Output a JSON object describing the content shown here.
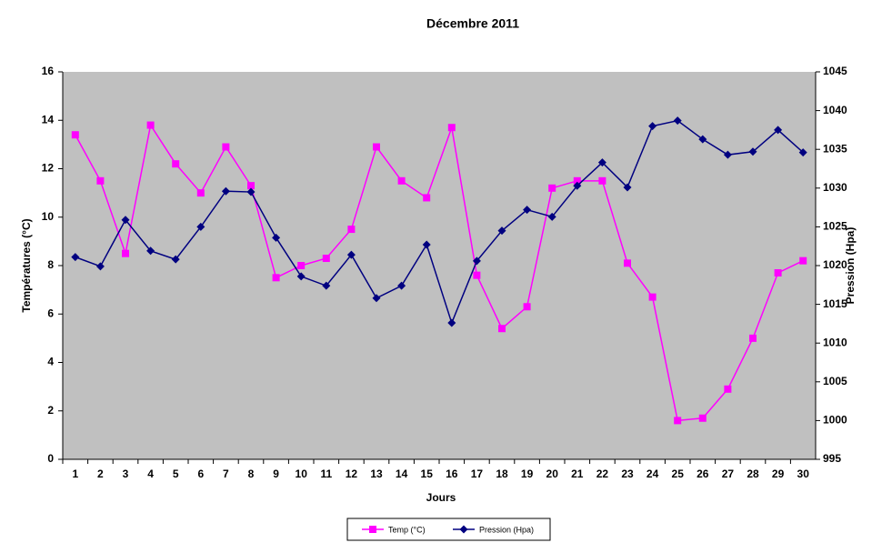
{
  "chart_data": {
    "type": "line",
    "title": "Décembre 2011",
    "x_label": "Jours",
    "y_label": "Températures (°C)",
    "y2_label": "Pression (Hpa)",
    "categories": [
      "1",
      "2",
      "3",
      "4",
      "5",
      "6",
      "7",
      "8",
      "9",
      "10",
      "11",
      "12",
      "13",
      "14",
      "15",
      "16",
      "17",
      "18",
      "19",
      "20",
      "21",
      "22",
      "23",
      "24",
      "25",
      "26",
      "27",
      "28",
      "29",
      "30"
    ],
    "series": [
      {
        "name": "Temp (°C)",
        "color": "#ff00ff",
        "marker": "square",
        "values": [
          13.4,
          11.5,
          8.5,
          13.8,
          12.2,
          11.0,
          12.9,
          11.3,
          7.5,
          8.0,
          8.3,
          9.5,
          12.9,
          11.5,
          10.8,
          13.7,
          7.6,
          5.4,
          6.3,
          11.2,
          11.5,
          11.5,
          8.1,
          6.7,
          1.6,
          1.7,
          2.9,
          5.0,
          7.7,
          8.2
        ]
      },
      {
        "name": "Pression (Hpa)",
        "color": "#000080",
        "marker": "diamond",
        "axis": "y2",
        "values": [
          1021.1,
          1019.9,
          1025.9,
          1021.9,
          1020.8,
          1025.0,
          1029.6,
          1029.5,
          1023.6,
          1018.6,
          1017.4,
          1021.4,
          1015.8,
          1017.4,
          1022.7,
          1012.6,
          1020.6,
          1024.5,
          1027.2,
          1026.3,
          1030.3,
          1033.3,
          1030.1,
          1038.0,
          1038.7,
          1036.3,
          1034.3,
          1034.7,
          1037.5,
          1034.6
        ]
      }
    ],
    "ylim": [
      0,
      16
    ],
    "yticks": [
      0,
      2,
      4,
      6,
      8,
      10,
      12,
      14,
      16
    ],
    "y2lim": [
      995,
      1045
    ],
    "y2ticks": [
      995,
      1000,
      1005,
      1010,
      1015,
      1020,
      1025,
      1030,
      1035,
      1040,
      1045
    ],
    "plot_background": "#c0c0c0",
    "grid": false,
    "legend": "bottom"
  }
}
